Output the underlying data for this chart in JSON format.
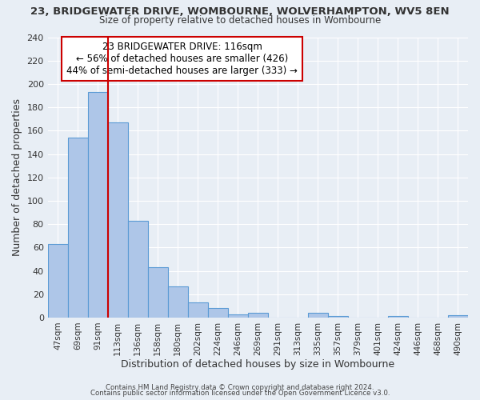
{
  "title1": "23, BRIDGEWATER DRIVE, WOMBOURNE, WOLVERHAMPTON, WV5 8EN",
  "title2": "Size of property relative to detached houses in Wombourne",
  "xlabel": "Distribution of detached houses by size in Wombourne",
  "ylabel": "Number of detached properties",
  "categories": [
    "47sqm",
    "69sqm",
    "91sqm",
    "113sqm",
    "136sqm",
    "158sqm",
    "180sqm",
    "202sqm",
    "224sqm",
    "246sqm",
    "269sqm",
    "291sqm",
    "313sqm",
    "335sqm",
    "357sqm",
    "379sqm",
    "401sqm",
    "424sqm",
    "446sqm",
    "468sqm",
    "490sqm"
  ],
  "values": [
    63,
    154,
    193,
    167,
    83,
    43,
    27,
    13,
    8,
    3,
    4,
    0,
    0,
    4,
    1,
    0,
    0,
    1,
    0,
    0,
    2
  ],
  "bar_color": "#aec6e8",
  "bar_edge_color": "#5b9bd5",
  "background_color": "#e8eef5",
  "property_line_x": 2.5,
  "property_line_color": "#cc0000",
  "annotation_title": "23 BRIDGEWATER DRIVE: 116sqm",
  "annotation_line1": "← 56% of detached houses are smaller (426)",
  "annotation_line2": "44% of semi-detached houses are larger (333) →",
  "annotation_box_color": "#ffffff",
  "annotation_box_edge": "#cc0000",
  "ylim": [
    0,
    240
  ],
  "yticks": [
    0,
    20,
    40,
    60,
    80,
    100,
    120,
    140,
    160,
    180,
    200,
    220,
    240
  ],
  "footer1": "Contains HM Land Registry data © Crown copyright and database right 2024.",
  "footer2": "Contains public sector information licensed under the Open Government Licence v3.0."
}
